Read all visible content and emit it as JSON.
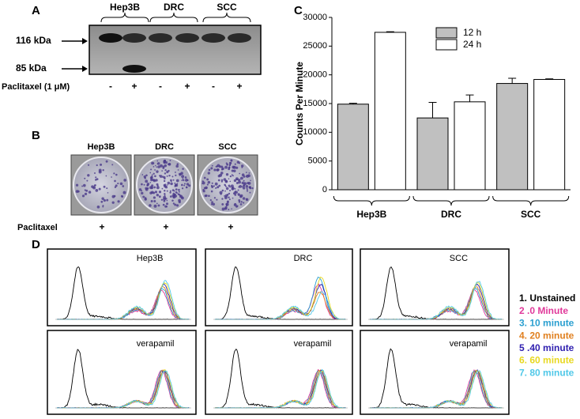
{
  "panel_a": {
    "label": "A",
    "groups": [
      "Hep3B",
      "DRC",
      "SCC"
    ],
    "markers": [
      "116 kDa",
      "85 kDa"
    ],
    "treatment": "Paclitaxel (1 μM)",
    "signs": [
      "-",
      "+",
      "-",
      "+",
      "-",
      "+"
    ]
  },
  "panel_b": {
    "label": "B",
    "groups": [
      "Hep3B",
      "DRC",
      "SCC"
    ],
    "treatment": "Paclitaxel",
    "signs": [
      "+",
      "+",
      "+"
    ]
  },
  "chart_data": {
    "type": "bar",
    "label": "C",
    "ylabel": "Counts Per Minute",
    "categories": [
      "Hep3B",
      "DRC",
      "SCC"
    ],
    "series": [
      {
        "name": "12 h",
        "color": "#c0c0c0",
        "values": [
          14900,
          12500,
          18500
        ],
        "errors": [
          150,
          2700,
          900
        ]
      },
      {
        "name": "24 h",
        "color": "#ffffff",
        "values": [
          27400,
          15300,
          19200
        ],
        "errors": [
          100,
          1200,
          100
        ]
      }
    ],
    "ylim": [
      0,
      30000
    ],
    "yticks": [
      0,
      5000,
      10000,
      15000,
      20000,
      25000,
      30000
    ]
  },
  "panel_d": {
    "label": "D",
    "top": [
      "Hep3B",
      "DRC",
      "SCC"
    ],
    "bottom": [
      "verapamil",
      "verapamil",
      "verapamil"
    ],
    "legend": [
      {
        "text": "1. Unstained",
        "color": "#000000"
      },
      {
        "text": "2 .0 Minute",
        "color": "#e0399a"
      },
      {
        "text": "3. 10 minute",
        "color": "#2a9fd0"
      },
      {
        "text": "4. 20 minute",
        "color": "#e08020"
      },
      {
        "text": "5 .40 minute",
        "color": "#3020b0"
      },
      {
        "text": "6. 60 minute",
        "color": "#e8d820"
      },
      {
        "text": "7. 80 minute",
        "color": "#50c8e8"
      }
    ]
  }
}
